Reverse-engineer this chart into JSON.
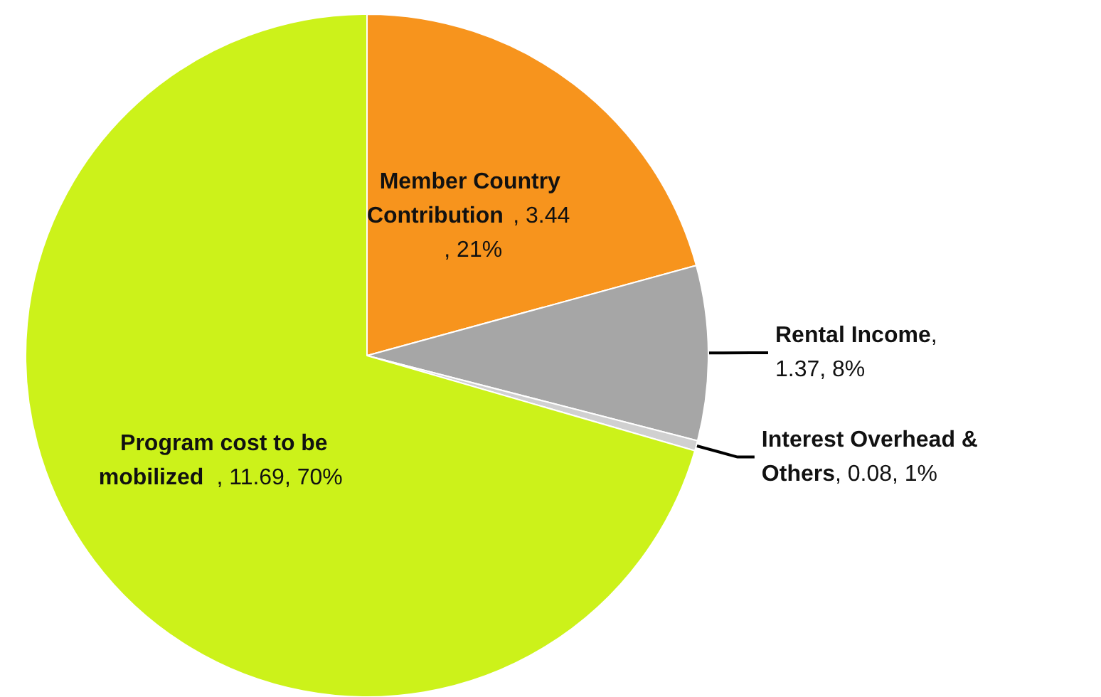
{
  "chart_data": {
    "type": "pie",
    "categories": [
      "Member Country Contribution",
      "Rental Income",
      "Interest Overhead & Others",
      "Program cost to be mobilized"
    ],
    "values": [
      3.44,
      1.37,
      0.08,
      11.69
    ],
    "value_labels": [
      ", 3.44, 21%",
      ", 1.37, 8%",
      ", 0.08, 1%",
      ", 11.69, 70%"
    ],
    "colors": [
      "#f7941d",
      "#a6a6a6",
      "#d0d0d0",
      "#ccf21a"
    ]
  }
}
